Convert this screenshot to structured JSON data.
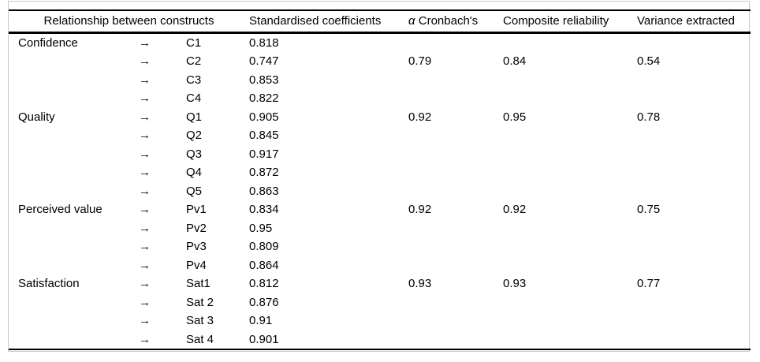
{
  "table": {
    "headers": {
      "relationship": "Relationship between constructs",
      "coefficients": "Standardised coefficients",
      "alpha": "α",
      "cronbachs": " Cronbach's",
      "composite": "Composite reliability",
      "variance": "Variance extracted"
    },
    "rows": [
      {
        "construct": "Confidence",
        "arrow": "→",
        "item": "C1",
        "coefficient": "0.818",
        "cronbach": "",
        "composite": "",
        "variance": ""
      },
      {
        "construct": "",
        "arrow": "→",
        "item": "C2",
        "coefficient": "0.747",
        "cronbach": "0.79",
        "composite": "0.84",
        "variance": "0.54"
      },
      {
        "construct": "",
        "arrow": "→",
        "item": "C3",
        "coefficient": "0.853",
        "cronbach": "",
        "composite": "",
        "variance": ""
      },
      {
        "construct": "",
        "arrow": "→",
        "item": "C4",
        "coefficient": "0.822",
        "cronbach": "",
        "composite": "",
        "variance": ""
      },
      {
        "construct": "Quality",
        "arrow": "→",
        "item": "Q1",
        "coefficient": "0.905",
        "cronbach": "0.92",
        "composite": "0.95",
        "variance": "0.78"
      },
      {
        "construct": "",
        "arrow": "→",
        "item": "Q2",
        "coefficient": "0.845",
        "cronbach": "",
        "composite": "",
        "variance": ""
      },
      {
        "construct": "",
        "arrow": "→",
        "item": "Q3",
        "coefficient": "0.917",
        "cronbach": "",
        "composite": "",
        "variance": ""
      },
      {
        "construct": "",
        "arrow": "→",
        "item": "Q4",
        "coefficient": "0.872",
        "cronbach": "",
        "composite": "",
        "variance": ""
      },
      {
        "construct": "",
        "arrow": "→",
        "item": "Q5",
        "coefficient": "0.863",
        "cronbach": "",
        "composite": "",
        "variance": ""
      },
      {
        "construct": "Perceived value",
        "arrow": "→",
        "item": "Pv1",
        "coefficient": "0.834",
        "cronbach": "0.92",
        "composite": "0.92",
        "variance": "0.75"
      },
      {
        "construct": "",
        "arrow": "→",
        "item": "Pv2",
        "coefficient": "0.95",
        "cronbach": "",
        "composite": "",
        "variance": ""
      },
      {
        "construct": "",
        "arrow": "→",
        "item": "Pv3",
        "coefficient": "0.809",
        "cronbach": "",
        "composite": "",
        "variance": ""
      },
      {
        "construct": "",
        "arrow": "→",
        "item": "Pv4",
        "coefficient": "0.864",
        "cronbach": "",
        "composite": "",
        "variance": ""
      },
      {
        "construct": "Satisfaction",
        "arrow": "→",
        "item": "Sat1",
        "coefficient": "0.812",
        "cronbach": "0.93",
        "composite": "0.93",
        "variance": "0.77"
      },
      {
        "construct": "",
        "arrow": "→",
        "item": "Sat 2",
        "coefficient": "0.876",
        "cronbach": "",
        "composite": "",
        "variance": ""
      },
      {
        "construct": "",
        "arrow": "→",
        "item": "Sat 3",
        "coefficient": "0.91",
        "cronbach": "",
        "composite": "",
        "variance": ""
      },
      {
        "construct": "",
        "arrow": "→",
        "item": "Sat 4",
        "coefficient": "0.901",
        "cronbach": "",
        "composite": "",
        "variance": ""
      }
    ]
  },
  "colors": {
    "rule": "#000000",
    "frame": "#c9c9c9",
    "background": "#ffffff",
    "text": "#000000"
  }
}
